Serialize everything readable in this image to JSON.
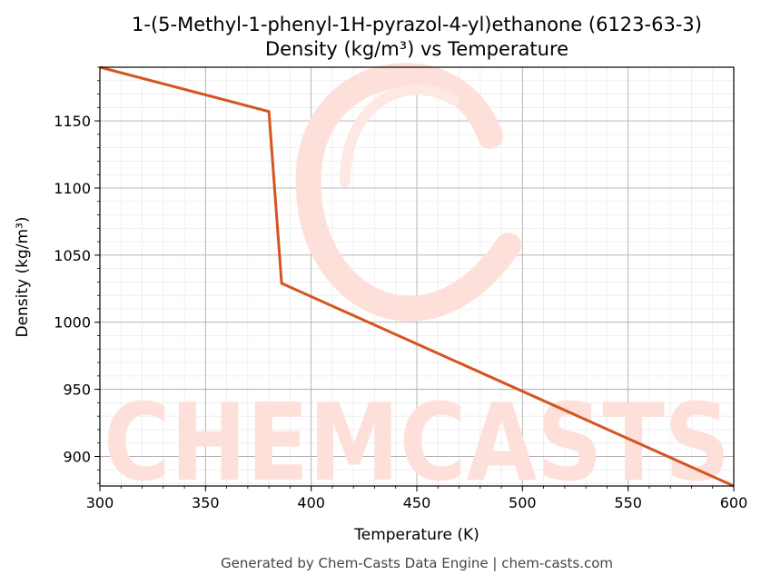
{
  "chart_data": {
    "type": "line",
    "title": "1-(5-Methyl-1-phenyl-1H-pyrazol-4-yl)ethanone (6123-63-3)",
    "subtitle": "Density (kg/m³) vs Temperature",
    "xlabel": "Temperature (K)",
    "ylabel": "Density (kg/m³)",
    "xlim": [
      300,
      600
    ],
    "ylim": [
      878,
      1190
    ],
    "xticks": [
      300,
      350,
      400,
      450,
      500,
      550,
      600
    ],
    "yticks": [
      900,
      950,
      1000,
      1050,
      1100,
      1150
    ],
    "grid": true,
    "series": [
      {
        "color": "#d5541f",
        "x": [
          300,
          380,
          386,
          600
        ],
        "y": [
          1190,
          1157,
          1029,
          878
        ]
      }
    ]
  },
  "watermark": {
    "text": "CHEMCASTS",
    "color": "#fde0d9"
  },
  "footer": "Generated by Chem-Casts Data Engine | chem-casts.com"
}
